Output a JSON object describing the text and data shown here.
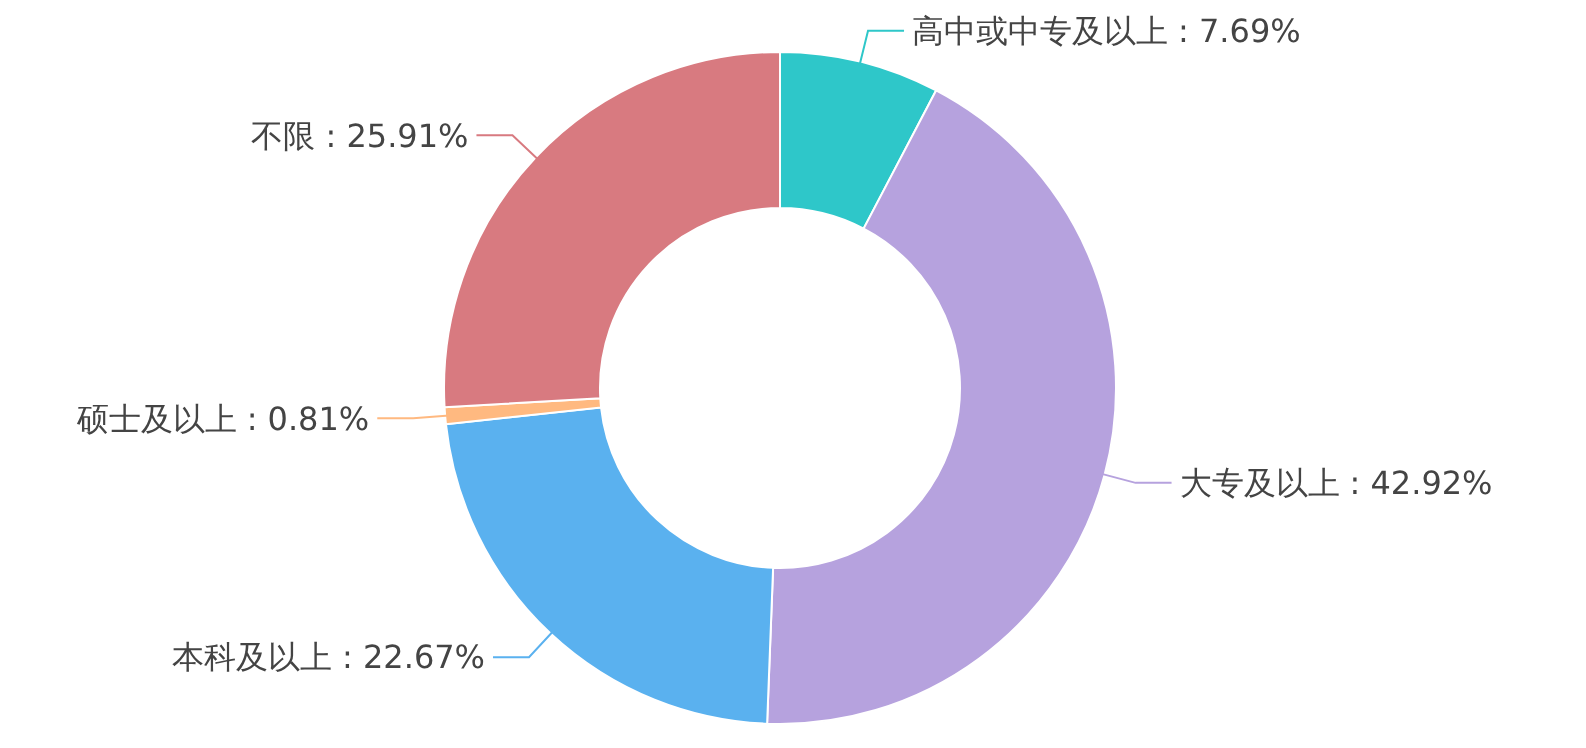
{
  "chart_data": {
    "type": "donut",
    "categories": [
      "高中或中专及以上",
      "大专及以上",
      "本科及以上",
      "硕士及以上",
      "不限"
    ],
    "values": [
      7.69,
      42.92,
      22.67,
      0.81,
      25.91
    ],
    "value_labels": [
      ": 7.69%",
      ": 42.92%",
      ": 22.67%",
      ": 0.81%",
      ": 25.91%"
    ],
    "colors": [
      "#2ec7c9",
      "#b6a2de",
      "#5ab1ef",
      "#ffb980",
      "#d87a80"
    ]
  }
}
